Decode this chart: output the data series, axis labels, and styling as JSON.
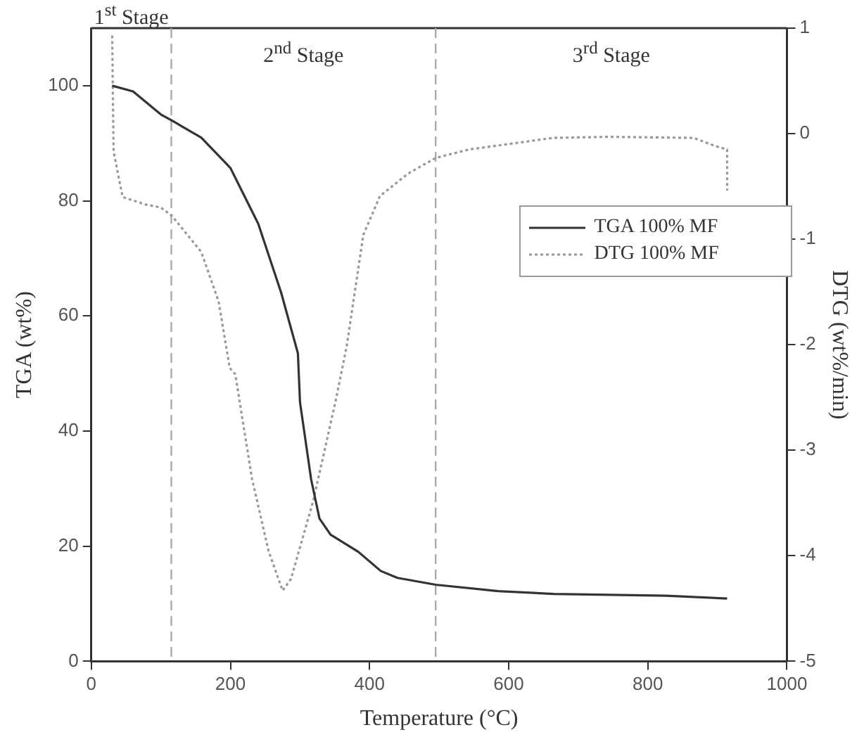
{
  "chart_data": {
    "type": "line",
    "xlabel": "Temperature (°C)",
    "ylabel": "TGA (wt%)",
    "y2label": "DTG (wt%/min)",
    "xlim": [
      0,
      1000
    ],
    "xticks": [
      0,
      200,
      400,
      600,
      800,
      1000
    ],
    "ylim": [
      0,
      110
    ],
    "yticks": [
      0,
      20,
      40,
      60,
      80,
      100
    ],
    "y2lim": [
      -5,
      1
    ],
    "y2ticks": [
      -5,
      -4,
      -3,
      -2,
      -1,
      0,
      1
    ],
    "grid": false,
    "legend": "right",
    "marker": "none",
    "series": [
      {
        "name": "TGA 100% MF",
        "color": "#333333",
        "line_style": "solid",
        "x": [
          30,
          60,
          100,
          115,
          158,
          200,
          240,
          273,
          297,
          300,
          316,
          328,
          344,
          384,
          416,
          440,
          495,
          585,
          665,
          826,
          914
        ],
        "values": [
          100,
          99,
          95,
          94,
          91,
          85.7,
          76,
          64,
          53.5,
          45,
          31.6,
          24.8,
          22,
          19,
          15.7,
          14.5,
          13.3,
          12.2,
          11.7,
          11.4,
          10.9
        ]
      },
      {
        "name": "DTG 100% MF",
        "color": "#999999",
        "line_style": "dotted",
        "axis": "y2",
        "x": [
          30,
          32,
          45,
          77,
          100,
          116,
          158,
          183,
          199,
          207,
          231,
          255,
          275,
          287,
          319,
          351,
          367,
          391,
          415,
          455,
          495,
          543,
          664,
          745,
          866,
          898,
          914,
          914
        ],
        "values": [
          0.93,
          -0.17,
          -0.6,
          -0.67,
          -0.7,
          -0.78,
          -1.12,
          -1.59,
          -2.22,
          -2.28,
          -3.27,
          -3.96,
          -4.33,
          -4.22,
          -3.48,
          -2.54,
          -2.02,
          -0.96,
          -0.59,
          -0.38,
          -0.23,
          -0.15,
          -0.04,
          -0.03,
          -0.04,
          -0.12,
          -0.15,
          -0.54
        ]
      }
    ],
    "ref_lines": [
      {
        "axis": "x",
        "value": 115,
        "color": "#aaaaaa",
        "line_style": "dashed"
      },
      {
        "axis": "x",
        "value": 495,
        "color": "#aaaaaa",
        "line_style": "dashed"
      }
    ],
    "annotations": [
      "1$^{st}$ Stage",
      "2$^{nd}$ Stage",
      "3$^{rd}$ Stage"
    ]
  }
}
